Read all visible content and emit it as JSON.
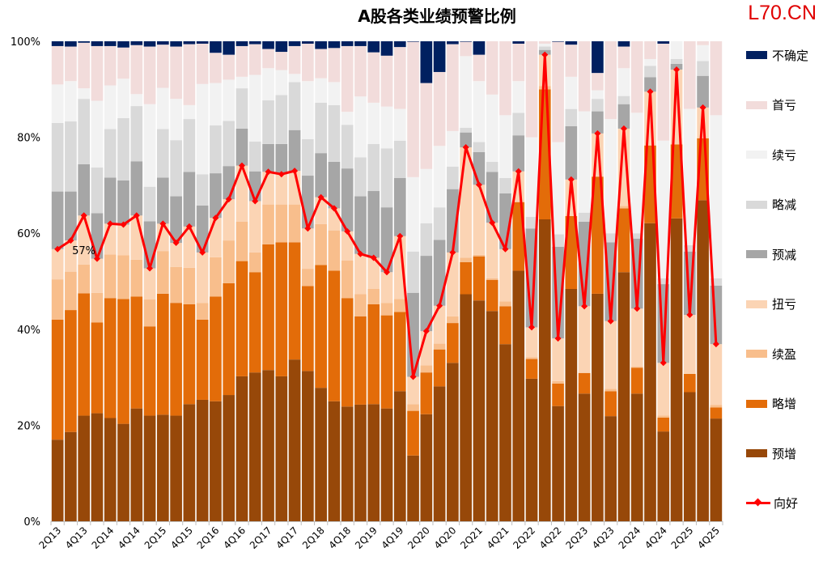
{
  "chart_data": {
    "type": "bar",
    "stacked": true,
    "title": "A股各类业绩预警比例",
    "brand": "L70.CN",
    "ylim": [
      0,
      100
    ],
    "yticks": [
      "0%",
      "20%",
      "40%",
      "60%",
      "80%",
      "100%"
    ],
    "categories": [
      "2Q13",
      "3Q13",
      "4Q13",
      "1Q14",
      "2Q14",
      "3Q14",
      "4Q14",
      "1Q15",
      "2Q15",
      "3Q15",
      "4Q15",
      "1Q16",
      "2Q16",
      "3Q16",
      "4Q16",
      "1Q17",
      "2Q17",
      "3Q17",
      "4Q17",
      "1Q18",
      "2Q18",
      "3Q18",
      "4Q18",
      "1Q19",
      "2Q19",
      "3Q19",
      "4Q19",
      "1Q20",
      "2Q20",
      "3Q20",
      "4Q20",
      "1Q21",
      "2Q21",
      "3Q21",
      "4Q21",
      "1Q22",
      "2Q22",
      "3Q22",
      "4Q22",
      "1Q23",
      "2Q23",
      "3Q23",
      "4Q23",
      "1Q24",
      "2Q24",
      "3Q24",
      "4Q24",
      "1Q25",
      "2Q25",
      "3Q25",
      "4Q25"
    ],
    "xtick_labels": [
      "2Q13",
      "4Q13",
      "2Q14",
      "4Q14",
      "2Q15",
      "4Q15",
      "2Q16",
      "4Q16",
      "2Q17",
      "4Q17",
      "2Q18",
      "4Q18",
      "2Q19",
      "4Q19",
      "2Q20",
      "4Q20",
      "2Q21",
      "4Q21",
      "2Q22",
      "4Q22",
      "2Q23",
      "4Q23",
      "2Q24",
      "4Q24",
      "2Q25",
      "4Q25"
    ],
    "annotation": "57%",
    "series": [
      {
        "name": "预增",
        "color": "#974809",
        "values": [
          17,
          18.6,
          22,
          22.5,
          21.5,
          20.3,
          23.5,
          22,
          22.2,
          22,
          24.4,
          25.3,
          25,
          26.3,
          30.2,
          31,
          31.5,
          30.2,
          33.7,
          31.3,
          27.8,
          25,
          23.9,
          24.3,
          24.4,
          23.5,
          27.1,
          13.7,
          22.3,
          28.1,
          33,
          47.3,
          46,
          43.8,
          36.9,
          52.2,
          29.7,
          62.9,
          24,
          48.4,
          26.6,
          47.4,
          21.9,
          51.9,
          26.6,
          62.1,
          18.7,
          63.1,
          26.9,
          66.9,
          21.4
        ]
      },
      {
        "name": "略增",
        "color": "#E36C09",
        "values": [
          25,
          25.4,
          25.5,
          18.9,
          25,
          26,
          23.3,
          18.6,
          25.2,
          23.5,
          20.8,
          16.7,
          21.8,
          23.3,
          24,
          20.9,
          26.2,
          27.9,
          24.4,
          17.7,
          25.6,
          27.2,
          22.6,
          18.4,
          20.8,
          19.4,
          16.5,
          9.3,
          8.7,
          7.7,
          8.3,
          6.7,
          9.2,
          6.5,
          7.9,
          14.3,
          4.1,
          27.1,
          4.7,
          15.2,
          4.3,
          24.4,
          5.2,
          13.3,
          5.4,
          16.2,
          2.9,
          15.4,
          3.8,
          12.9,
          2.3
        ]
      },
      {
        "name": "续盈",
        "color": "#F8BE8C",
        "values": [
          8.4,
          8,
          6,
          6.2,
          9.1,
          9.1,
          7.7,
          5.6,
          8.9,
          7.5,
          7.6,
          3.5,
          8.2,
          8.9,
          8.2,
          4.1,
          8.3,
          7.9,
          7.9,
          3.6,
          8.5,
          8.4,
          7.8,
          4.6,
          3.2,
          2.6,
          2.7,
          1.4,
          1.5,
          1.2,
          1.4,
          0.9,
          0.3,
          0.3,
          1,
          0,
          0.4,
          0.7,
          0.5,
          0,
          0,
          0,
          0.5,
          0.5,
          0.2,
          0,
          0.4,
          0,
          0,
          0,
          0.5
        ]
      },
      {
        "name": "扭亏",
        "color": "#FBD4B4",
        "values": [
          6.3,
          6.5,
          10.2,
          7.1,
          6.4,
          6.4,
          9.2,
          6.5,
          5.7,
          5,
          8.6,
          10.5,
          8.2,
          8.6,
          11.7,
          10.7,
          6.8,
          6.3,
          7,
          8.4,
          5.6,
          4.6,
          6.1,
          8.4,
          6.5,
          6.4,
          13.1,
          5.7,
          7.1,
          7.9,
          13.3,
          23,
          14.6,
          11.6,
          10.9,
          6.4,
          6.2,
          6.5,
          8.9,
          7.6,
          13.9,
          9,
          14.1,
          16.1,
          12.1,
          11.2,
          11,
          15.6,
          12.3,
          6.4,
          12.7
        ]
      },
      {
        "name": "预减",
        "color": "#A6A6A6",
        "values": [
          12,
          10.2,
          10.7,
          9.5,
          9.6,
          9.2,
          11.3,
          9.8,
          9.6,
          9.7,
          11.4,
          9.8,
          9.3,
          6.9,
          7.7,
          6.2,
          5.8,
          6.3,
          8.5,
          11,
          9.2,
          9.7,
          13.1,
          12,
          13.9,
          13.5,
          12.1,
          17.5,
          15.7,
          13.7,
          13.2,
          3.1,
          6.8,
          10.6,
          11.6,
          7.5,
          20.6,
          1,
          19.1,
          11.1,
          17.6,
          4.6,
          16.4,
          5.1,
          14.6,
          3,
          16.4,
          1.2,
          13.2,
          6.6,
          12.2
        ]
      },
      {
        "name": "略减",
        "color": "#D9D9D9",
        "values": [
          14.3,
          14.6,
          13.6,
          9.5,
          10.1,
          13,
          11.5,
          7.2,
          10.1,
          11.7,
          11,
          6.5,
          10,
          9.4,
          8.4,
          6.2,
          9.1,
          10.2,
          10,
          7.6,
          10.5,
          11.8,
          9.1,
          8.1,
          9.8,
          12.3,
          7.8,
          8.6,
          6.8,
          6.8,
          4.7,
          1,
          2.1,
          2.1,
          3.2,
          4.7,
          2.4,
          0.7,
          2.6,
          3.6,
          1.9,
          2.6,
          1.9,
          1.7,
          1.1,
          2.4,
          1.2,
          1,
          1.3,
          3.1,
          1.5
        ]
      },
      {
        "name": "续亏",
        "color": "#F2F2F2",
        "values": [
          8,
          8.4,
          2.2,
          13.9,
          9.1,
          8.2,
          2.5,
          17.2,
          8.6,
          8.6,
          2.9,
          18.8,
          8.8,
          8.6,
          2.4,
          13.9,
          6.7,
          5.2,
          1.7,
          12.1,
          5.1,
          4.8,
          2.7,
          12.7,
          8.6,
          8.7,
          6.6,
          15.5,
          11.3,
          12.8,
          7.4,
          14.9,
          12.7,
          14,
          13.1,
          6.6,
          16.6,
          0.6,
          19.2,
          6.7,
          21.1,
          1.8,
          23.8,
          5.8,
          25.1,
          1.4,
          28.7,
          3.7,
          28.4,
          3.3,
          34
        ]
      },
      {
        "name": "首亏",
        "color": "#F2DCDB",
        "values": [
          8,
          7.2,
          9.5,
          11.4,
          8.2,
          6.5,
          10.2,
          12,
          9,
          10.9,
          12.7,
          8.4,
          6.3,
          5.2,
          6.4,
          6.4,
          4,
          3.8,
          5.8,
          7.8,
          6.1,
          7.1,
          13.7,
          10.5,
          10.5,
          10.6,
          12.9,
          28.2,
          17.9,
          15.4,
          18.1,
          3,
          5.5,
          11.1,
          15.4,
          7.8,
          20,
          0.5,
          20.9,
          6.7,
          14.6,
          3.6,
          16.2,
          4.5,
          14.9,
          3.7,
          20.2,
          0,
          14.1,
          0.8,
          15.4
        ]
      },
      {
        "name": "不确定",
        "color": "#002060",
        "values": [
          1,
          1.1,
          0.3,
          1,
          1,
          1.3,
          0.8,
          1.1,
          0.7,
          1.1,
          0.6,
          0.5,
          2.4,
          2.8,
          1,
          0.6,
          1.6,
          2.2,
          1,
          0.5,
          1.6,
          1.4,
          1,
          1,
          2.3,
          3,
          1.2,
          0.1,
          8.7,
          6.4,
          0.6,
          0.1,
          2.8,
          0,
          0,
          0.5,
          0,
          0,
          0.1,
          0.7,
          0,
          6.6,
          0,
          1.1,
          0,
          0,
          0.5,
          0,
          0,
          0,
          0
        ]
      }
    ],
    "line": {
      "name": "向好",
      "color": "#FF0000",
      "values": [
        56.7,
        58.5,
        63.7,
        54.7,
        62,
        61.8,
        63.7,
        52.7,
        62,
        58,
        61.4,
        56,
        63.2,
        67.1,
        74.1,
        66.7,
        72.8,
        72.3,
        73,
        61,
        67.5,
        65.2,
        60.4,
        55.7,
        54.9,
        51.9,
        59.4,
        30.1,
        39.6,
        44.9,
        56,
        77.9,
        70.1,
        62.2,
        56.7,
        72.9,
        40.4,
        97.2,
        38.1,
        71.2,
        44.8,
        80.8,
        41.7,
        81.8,
        44.3,
        89.5,
        33,
        94.1,
        43,
        86.2,
        36.9
      ]
    },
    "legend_order": [
      "不确定",
      "首亏",
      "续亏",
      "略减",
      "预减",
      "扭亏",
      "续盈",
      "略增",
      "预增",
      "向好"
    ],
    "legend_position": "right"
  }
}
